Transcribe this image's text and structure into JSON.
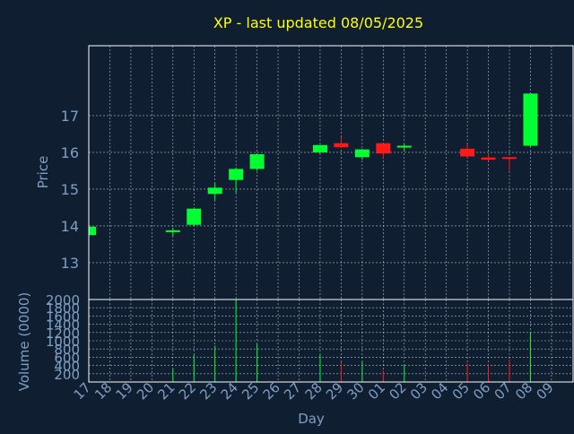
{
  "chart_data": {
    "type": "candlestick",
    "title": "XP - last updated 08/05/2025",
    "xlabel": "Day",
    "colors": {
      "background": "#0f1e30",
      "title": "#ffff00",
      "axis_text": "#7f9fc4",
      "frame": "#ffffff",
      "grid": "#ffffff",
      "up": "#00ff33",
      "down": "#ff1a1a"
    },
    "grid": true,
    "x_tick_labels": [
      "17",
      "18",
      "19",
      "20",
      "21",
      "22",
      "23",
      "24",
      "25",
      "26",
      "27",
      "28",
      "29",
      "30",
      "01",
      "02",
      "03",
      "04",
      "05",
      "06",
      "07",
      "08",
      "09"
    ],
    "price_panel": {
      "ylabel": "Price",
      "ylim": [
        12.0,
        18.9
      ],
      "yticks": [
        13,
        14,
        15,
        16,
        17
      ],
      "candles": [
        {
          "day": "17",
          "open": 13.75,
          "high": 13.98,
          "low": 13.7,
          "close": 13.98
        },
        {
          "day": "21",
          "open": 13.85,
          "high": 13.95,
          "low": 13.72,
          "close": 13.88
        },
        {
          "day": "22",
          "open": 14.03,
          "high": 14.47,
          "low": 14.01,
          "close": 14.47
        },
        {
          "day": "23",
          "open": 14.87,
          "high": 15.17,
          "low": 14.7,
          "close": 15.04
        },
        {
          "day": "24",
          "open": 15.25,
          "high": 15.59,
          "low": 14.9,
          "close": 15.55
        },
        {
          "day": "25",
          "open": 15.55,
          "high": 15.98,
          "low": 15.5,
          "close": 15.95
        },
        {
          "day": "28",
          "open": 16.0,
          "high": 16.2,
          "low": 15.97,
          "close": 16.2
        },
        {
          "day": "29",
          "open": 16.25,
          "high": 16.42,
          "low": 16.12,
          "close": 16.14
        },
        {
          "day": "30",
          "open": 15.87,
          "high": 16.1,
          "low": 15.8,
          "close": 16.08
        },
        {
          "day": "01",
          "open": 16.25,
          "high": 16.27,
          "low": 15.82,
          "close": 15.97
        },
        {
          "day": "02",
          "open": 16.15,
          "high": 16.22,
          "low": 16.03,
          "close": 16.18
        },
        {
          "day": "05",
          "open": 16.1,
          "high": 16.23,
          "low": 15.84,
          "close": 15.89
        },
        {
          "day": "06",
          "open": 15.86,
          "high": 15.98,
          "low": 15.78,
          "close": 15.8
        },
        {
          "day": "07",
          "open": 15.87,
          "high": 15.88,
          "low": 15.5,
          "close": 15.84
        },
        {
          "day": "08",
          "open": 16.18,
          "high": 17.6,
          "low": 16.16,
          "close": 17.6
        }
      ]
    },
    "volume_panel": {
      "ylabel": "Volume (0000)",
      "ylim": [
        0,
        2000
      ],
      "yticks": [
        200,
        400,
        600,
        800,
        1000,
        1200,
        1400,
        1600,
        1800,
        2000
      ],
      "bars": [
        {
          "day": "21",
          "volume": 320
        },
        {
          "day": "22",
          "volume": 660
        },
        {
          "day": "23",
          "volume": 880
        },
        {
          "day": "24",
          "volume": 2000
        },
        {
          "day": "25",
          "volume": 920
        },
        {
          "day": "28",
          "volume": 660
        },
        {
          "day": "29",
          "volume": 480
        },
        {
          "day": "30",
          "volume": 500
        },
        {
          "day": "01",
          "volume": 280
        },
        {
          "day": "02",
          "volume": 420
        },
        {
          "day": "05",
          "volume": 450
        },
        {
          "day": "06",
          "volume": 430
        },
        {
          "day": "07",
          "volume": 550
        },
        {
          "day": "08",
          "volume": 1220
        }
      ]
    }
  }
}
